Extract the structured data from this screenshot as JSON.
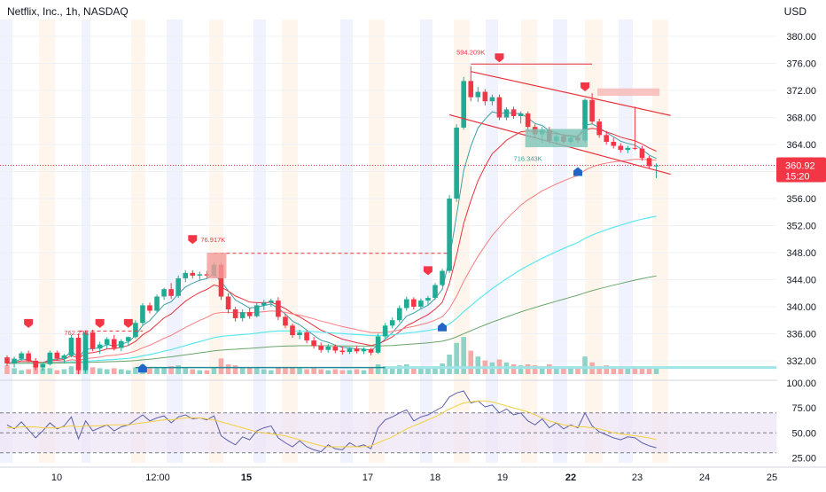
{
  "header": {
    "title": "Netflix, Inc., 1h, NASDAQ",
    "currency": "USD"
  },
  "price_tag": {
    "price": "360.92",
    "countdown": "15:20"
  },
  "annotations": {
    "top_volume": "594.209K",
    "mid_volume": "716.343K",
    "left_high": "76.917K",
    "left_low": "762.2?K"
  },
  "colors": {
    "up": "#22ab94",
    "down": "#f23645",
    "ema_fast": "#f77c80",
    "ema_red": "#e8323c",
    "ema_cyan": "#5ce8f0",
    "ema_green": "#6aa56a",
    "rsi_line": "#5b5fa8",
    "rsi_ma": "#f4d03f"
  },
  "chart_data": {
    "type": "candlestick",
    "symbol": "NFLX",
    "price_axis": {
      "ticks": [
        "380.00",
        "376.00",
        "372.00",
        "368.00",
        "364.00",
        "360.00",
        "356.00",
        "352.00",
        "348.00",
        "344.00",
        "340.00",
        "336.00",
        "332.00"
      ],
      "range": [
        329.5,
        382.5
      ]
    },
    "rsi_axis": {
      "ticks": [
        "100.00",
        "75.00",
        "50.00",
        "25.00"
      ],
      "range": [
        20,
        100
      ],
      "levels": [
        70,
        50,
        30
      ]
    },
    "time_axis": {
      "labels": [
        "10",
        "12:00",
        "15",
        "17",
        "18",
        "19",
        "22",
        "23",
        "24",
        "25"
      ],
      "bold": [
        "15",
        "22"
      ]
    },
    "candles": [
      [
        332.5,
        332.8,
        331.2,
        331.6
      ],
      [
        331.6,
        332.6,
        331.0,
        332.3
      ],
      [
        332.3,
        333.4,
        332.0,
        333.1
      ],
      [
        333.1,
        333.5,
        331.8,
        332.0
      ],
      [
        332.0,
        332.4,
        330.6,
        331.0
      ],
      [
        331.0,
        331.8,
        330.5,
        331.5
      ],
      [
        331.5,
        333.5,
        331.3,
        333.2
      ],
      [
        333.2,
        333.5,
        332.0,
        332.3
      ],
      [
        332.3,
        333.0,
        331.6,
        332.8
      ],
      [
        332.8,
        335.8,
        332.5,
        335.4
      ],
      [
        335.4,
        336.0,
        330.0,
        330.6
      ],
      [
        330.6,
        336.5,
        330.2,
        336.2
      ],
      [
        336.2,
        336.6,
        333.4,
        333.8
      ],
      [
        333.8,
        334.8,
        333.0,
        334.4
      ],
      [
        334.4,
        335.5,
        333.8,
        335.2
      ],
      [
        335.2,
        335.8,
        333.5,
        333.9
      ],
      [
        333.9,
        335.2,
        333.4,
        334.9
      ],
      [
        334.9,
        335.6,
        334.2,
        335.5
      ],
      [
        335.5,
        338.0,
        335.3,
        337.6
      ],
      [
        337.6,
        340.5,
        337.3,
        340.2
      ],
      [
        340.2,
        340.6,
        339.0,
        339.4
      ],
      [
        339.4,
        341.8,
        339.2,
        341.5
      ],
      [
        341.5,
        342.8,
        341.0,
        342.6
      ],
      [
        342.6,
        343.5,
        341.2,
        341.6
      ],
      [
        341.6,
        344.6,
        341.3,
        344.2
      ],
      [
        344.2,
        345.4,
        343.6,
        345.0
      ],
      [
        345.0,
        345.4,
        344.2,
        344.6
      ],
      [
        344.6,
        345.2,
        344.0,
        344.8
      ],
      [
        344.8,
        345.3,
        344.2,
        344.6
      ],
      [
        344.6,
        346.6,
        344.3,
        346.2
      ],
      [
        346.2,
        346.5,
        341.0,
        341.5
      ],
      [
        341.5,
        342.0,
        339.0,
        339.6
      ],
      [
        339.6,
        340.0,
        337.8,
        338.3
      ],
      [
        338.3,
        339.6,
        337.8,
        339.2
      ],
      [
        339.2,
        339.8,
        338.2,
        338.6
      ],
      [
        338.6,
        340.6,
        338.4,
        340.2
      ],
      [
        340.2,
        341.0,
        339.5,
        340.6
      ],
      [
        340.6,
        341.2,
        340.0,
        340.9
      ],
      [
        340.9,
        341.4,
        338.0,
        338.5
      ],
      [
        338.5,
        338.9,
        336.8,
        337.2
      ],
      [
        337.2,
        337.5,
        335.4,
        335.8
      ],
      [
        335.8,
        336.6,
        335.2,
        336.2
      ],
      [
        336.2,
        336.5,
        334.6,
        335.0
      ],
      [
        335.0,
        335.5,
        333.8,
        334.2
      ],
      [
        334.2,
        334.7,
        333.2,
        333.6
      ],
      [
        333.6,
        334.5,
        333.2,
        334.1
      ],
      [
        334.1,
        334.4,
        333.1,
        333.5
      ],
      [
        333.5,
        334.1,
        332.9,
        333.3
      ],
      [
        333.3,
        334.0,
        333.0,
        333.8
      ],
      [
        333.8,
        334.2,
        333.1,
        333.4
      ],
      [
        333.4,
        334.0,
        333.0,
        333.7
      ],
      [
        333.7,
        333.9,
        332.8,
        333.2
      ],
      [
        333.2,
        336.0,
        333.0,
        335.6
      ],
      [
        335.6,
        337.6,
        335.3,
        337.2
      ],
      [
        337.2,
        338.4,
        336.8,
        338.0
      ],
      [
        338.0,
        340.2,
        337.7,
        339.8
      ],
      [
        339.8,
        341.5,
        339.4,
        341.1
      ],
      [
        341.1,
        341.4,
        339.6,
        340.0
      ],
      [
        340.0,
        341.2,
        339.7,
        340.9
      ],
      [
        340.9,
        341.6,
        340.3,
        341.3
      ],
      [
        341.3,
        343.5,
        341.0,
        343.2
      ],
      [
        343.2,
        345.6,
        343.0,
        345.3
      ],
      [
        345.3,
        356.5,
        345.0,
        356.0
      ],
      [
        356.0,
        367.0,
        355.5,
        366.5
      ],
      [
        366.5,
        374.0,
        366.2,
        373.4
      ],
      [
        373.4,
        375.6,
        370.4,
        371.0
      ],
      [
        371.0,
        372.5,
        370.3,
        371.8
      ],
      [
        371.8,
        372.2,
        369.8,
        370.4
      ],
      [
        370.4,
        371.4,
        369.8,
        371.0
      ],
      [
        371.0,
        371.4,
        367.6,
        368.0
      ],
      [
        368.0,
        369.5,
        367.6,
        369.2
      ],
      [
        369.2,
        369.6,
        367.8,
        368.2
      ],
      [
        368.2,
        368.9,
        367.1,
        368.6
      ],
      [
        368.6,
        368.9,
        366.2,
        366.6
      ],
      [
        366.6,
        367.0,
        365.0,
        365.5
      ],
      [
        365.5,
        366.6,
        364.2,
        366.2
      ],
      [
        366.2,
        366.6,
        364.1,
        364.5
      ],
      [
        364.5,
        365.5,
        364.0,
        365.2
      ],
      [
        365.2,
        365.6,
        364.1,
        364.4
      ],
      [
        364.4,
        365.2,
        364.0,
        365.0
      ],
      [
        365.0,
        365.5,
        364.2,
        364.6
      ],
      [
        364.6,
        370.8,
        364.3,
        370.6
      ],
      [
        370.6,
        371.6,
        367.0,
        367.4
      ],
      [
        367.4,
        367.8,
        365.0,
        365.4
      ],
      [
        365.4,
        366.0,
        364.0,
        364.4
      ],
      [
        364.4,
        365.0,
        363.4,
        363.8
      ],
      [
        363.8,
        364.2,
        362.8,
        363.2
      ],
      [
        363.2,
        363.8,
        362.7,
        363.5
      ],
      [
        363.5,
        369.6,
        363.2,
        363.4
      ],
      [
        363.4,
        363.8,
        361.6,
        362.0
      ],
      [
        362.0,
        362.3,
        360.4,
        360.8
      ],
      [
        360.8,
        361.2,
        359.0,
        360.9
      ]
    ],
    "volume": [
      0.45,
      0.3,
      0.2,
      0.25,
      0.35,
      0.3,
      0.3,
      0.2,
      0.25,
      0.4,
      0.5,
      0.55,
      0.35,
      0.3,
      0.25,
      0.3,
      0.25,
      0.2,
      0.35,
      0.5,
      0.3,
      0.3,
      0.35,
      0.4,
      0.45,
      0.3,
      0.25,
      0.2,
      0.2,
      0.3,
      0.8,
      0.5,
      0.45,
      0.3,
      0.35,
      0.3,
      0.25,
      0.2,
      0.35,
      0.3,
      0.35,
      0.3,
      0.25,
      0.3,
      0.25,
      0.2,
      0.25,
      0.2,
      0.2,
      0.25,
      0.2,
      0.3,
      0.5,
      0.4,
      0.35,
      0.45,
      0.5,
      0.3,
      0.3,
      0.35,
      0.4,
      0.55,
      1.0,
      1.6,
      1.9,
      1.2,
      0.9,
      0.7,
      0.6,
      0.75,
      0.6,
      0.5,
      0.45,
      0.5,
      0.45,
      0.4,
      0.5,
      0.4,
      0.35,
      0.4,
      0.35,
      0.9,
      0.6,
      0.4,
      0.45,
      0.35,
      0.3,
      0.3,
      0.4,
      0.35,
      0.3,
      0.3
    ],
    "rsi": [
      58,
      54,
      61,
      53,
      45,
      52,
      60,
      54,
      57,
      66,
      44,
      62,
      52,
      55,
      58,
      52,
      56,
      58,
      63,
      68,
      62,
      65,
      67,
      60,
      66,
      68,
      64,
      65,
      63,
      67,
      47,
      42,
      38,
      46,
      43,
      52,
      55,
      57,
      45,
      40,
      36,
      42,
      36,
      33,
      31,
      38,
      34,
      33,
      40,
      36,
      38,
      34,
      55,
      63,
      66,
      70,
      73,
      62,
      66,
      68,
      72,
      76,
      86,
      90,
      92,
      80,
      82,
      76,
      78,
      70,
      74,
      68,
      70,
      62,
      58,
      64,
      55,
      60,
      54,
      58,
      55,
      70,
      57,
      51,
      48,
      45,
      43,
      46,
      45,
      40,
      37,
      35
    ],
    "rsi_ma": [
      55,
      55,
      56,
      56,
      56,
      55,
      55,
      55,
      56,
      57,
      56,
      57,
      57,
      57,
      58,
      58,
      58,
      58,
      59,
      60,
      61,
      62,
      63,
      63,
      64,
      65,
      65,
      65,
      64,
      63,
      61,
      59,
      57,
      55,
      53,
      51,
      50,
      49,
      48,
      47,
      45,
      43,
      41,
      39,
      37,
      36,
      36,
      36,
      36,
      36,
      36,
      37,
      40,
      43,
      46,
      50,
      54,
      57,
      60,
      63,
      66,
      70,
      74,
      77,
      80,
      81,
      82,
      82,
      81,
      79,
      77,
      75,
      73,
      71,
      68,
      65,
      62,
      60,
      58,
      57,
      56,
      56,
      55,
      54,
      52,
      50,
      49,
      48,
      47,
      46,
      45,
      43
    ]
  }
}
